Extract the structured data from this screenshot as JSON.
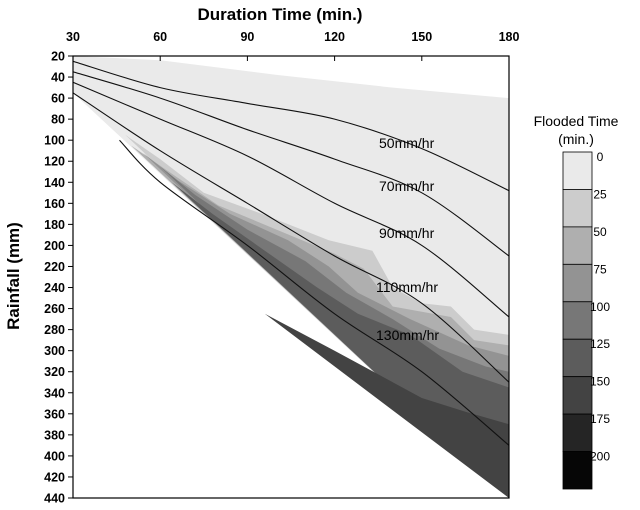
{
  "chart_data": {
    "type": "contour",
    "xlabel": "Duration Time (min.)",
    "ylabel": "Rainfall (mm)",
    "x_ticks": [
      30,
      60,
      90,
      120,
      150,
      180
    ],
    "y_ticks": [
      20,
      40,
      60,
      80,
      100,
      120,
      140,
      160,
      180,
      200,
      220,
      240,
      260,
      280,
      300,
      320,
      340,
      360,
      380,
      400,
      420,
      440
    ],
    "xlim": [
      30,
      180
    ],
    "ylim": [
      20,
      440
    ],
    "y_inverted": true,
    "x_axis_position": "top",
    "colorbar": {
      "title_line1": "Flooded Time",
      "title_line2": "(min.)",
      "levels": [
        0,
        25,
        50,
        75,
        100,
        125,
        150,
        175,
        200
      ],
      "colors": [
        "#eaeaea",
        "#cccccc",
        "#afafaf",
        "#939393",
        "#777777",
        "#5c5c5c",
        "#434343",
        "#252525",
        "#060606"
      ]
    },
    "intensity_lines": [
      {
        "label": "50mm/hr",
        "points": [
          [
            30,
            25
          ],
          [
            60,
            50
          ],
          [
            90,
            65
          ],
          [
            120,
            80
          ],
          [
            150,
            108
          ],
          [
            180,
            148
          ]
        ]
      },
      {
        "label": "70mm/hr",
        "points": [
          [
            30,
            35
          ],
          [
            60,
            60
          ],
          [
            90,
            90
          ],
          [
            120,
            118
          ],
          [
            150,
            150
          ],
          [
            180,
            210
          ]
        ]
      },
      {
        "label": "90mm/hr",
        "points": [
          [
            30,
            45
          ],
          [
            60,
            80
          ],
          [
            90,
            115
          ],
          [
            120,
            160
          ],
          [
            150,
            200
          ],
          [
            180,
            268
          ]
        ]
      },
      {
        "label": "110mm/hr",
        "points": [
          [
            30,
            55
          ],
          [
            60,
            110
          ],
          [
            90,
            160
          ],
          [
            120,
            210
          ],
          [
            150,
            255
          ],
          [
            180,
            330
          ]
        ]
      },
      {
        "label": "130mm/hr",
        "points": [
          [
            46,
            100
          ],
          [
            60,
            140
          ],
          [
            90,
            200
          ],
          [
            120,
            265
          ],
          [
            150,
            320
          ],
          [
            180,
            390
          ]
        ]
      }
    ]
  }
}
